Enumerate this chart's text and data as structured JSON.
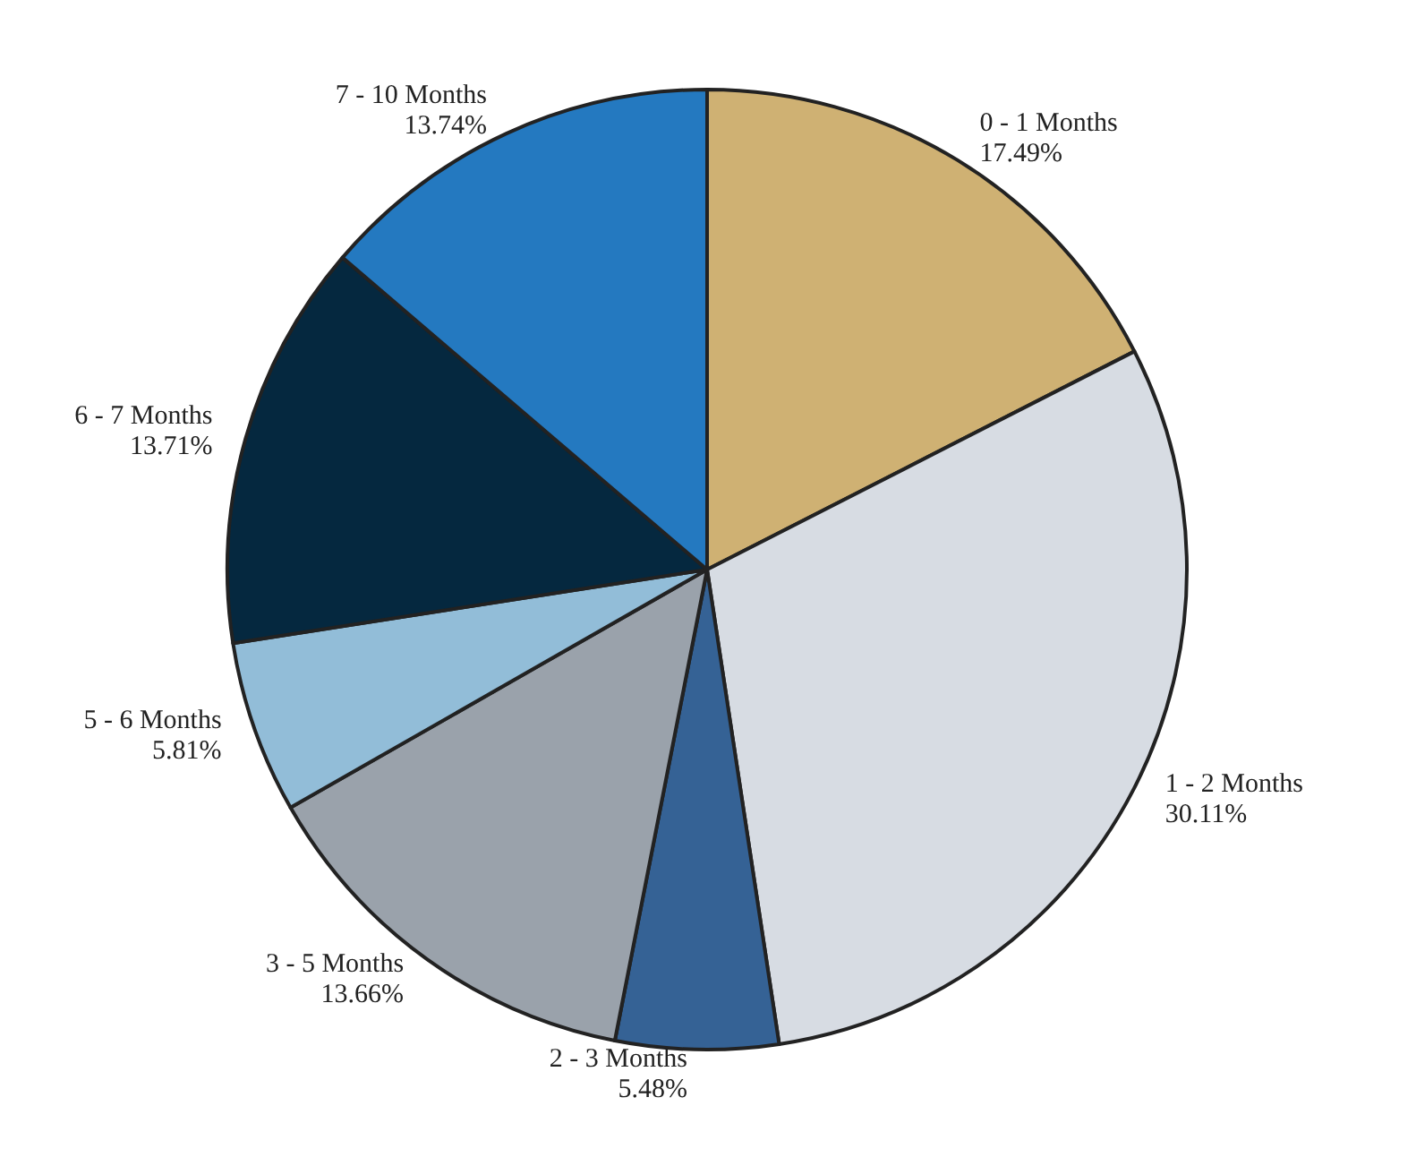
{
  "chart_data": {
    "type": "pie",
    "categories": [
      "0 - 1 Months",
      "1 - 2 Months",
      "2 - 3 Months",
      "3 - 5 Months",
      "5 - 6 Months",
      "6 - 7 Months",
      "7 - 10 Months"
    ],
    "values": [
      17.49,
      30.11,
      5.48,
      13.66,
      5.81,
      13.71,
      13.74
    ],
    "value_labels": [
      "17.49%",
      "30.11%",
      "5.48%",
      "13.66%",
      "5.81%",
      "13.71%",
      "13.74%"
    ],
    "colors": [
      "#cfb173",
      "#d7dce3",
      "#356295",
      "#9aa2ab",
      "#92bdd8",
      "#05283f",
      "#2479c0"
    ],
    "legend": false
  }
}
